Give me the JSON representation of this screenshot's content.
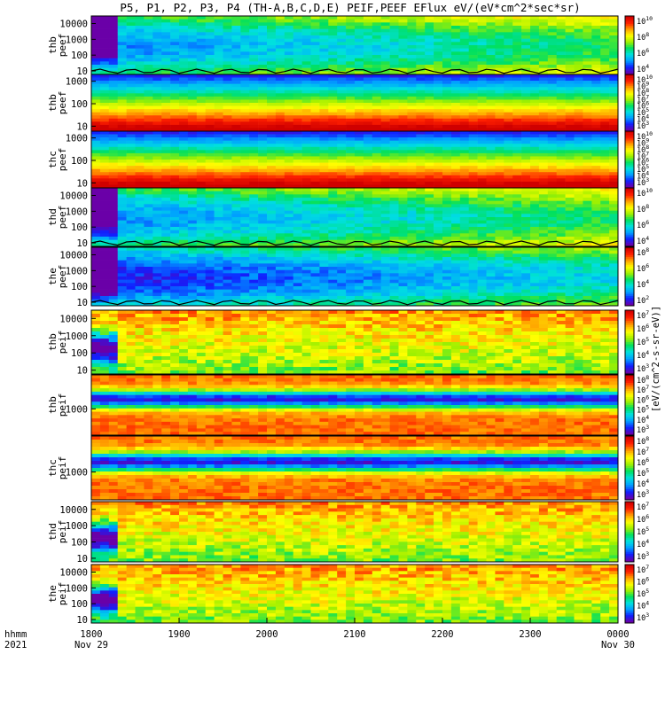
{
  "chart_data": {
    "type": "heatmap",
    "title": "P5, P1, P2, P3, P4 (TH-A,B,C,D,E) PEIF,PEEF EFlux eV/(eV*cm^2*sec*sr)",
    "colorbar_unit": "[eV/(cm^2-s-sr-eV)]",
    "colormap": [
      "#6a00a8",
      "#1020ff",
      "#00a0ff",
      "#00e0e0",
      "#00e060",
      "#a0f000",
      "#ffff00",
      "#ffa000",
      "#ff2000",
      "#d00000"
    ],
    "x_axis": {
      "row_labels": [
        "hhmm",
        "2021"
      ],
      "ticks": [
        {
          "time": "1800",
          "date": "Nov 29"
        },
        {
          "time": "1900",
          "date": ""
        },
        {
          "time": "2000",
          "date": ""
        },
        {
          "time": "2100",
          "date": ""
        },
        {
          "time": "2200",
          "date": ""
        },
        {
          "time": "2300",
          "date": ""
        },
        {
          "time": "0000",
          "date": "Nov 30"
        }
      ],
      "range_hours": [
        18,
        24
      ]
    },
    "panels": [
      {
        "probe": "thb",
        "product": "peef",
        "ylim": [
          6,
          30000
        ],
        "yticks": [
          "10",
          "100",
          "1000",
          "10000"
        ],
        "colorbar": {
          "ticks": [
            "10^10",
            "10^8",
            "10^6",
            "10^4"
          ]
        },
        "spacecraft_potential_line": true
      },
      {
        "probe": "thb",
        "product": "peef",
        "ylim": [
          6,
          2000
        ],
        "yticks": [
          "10",
          "100",
          "1000"
        ],
        "colorbar": {
          "ticks": [
            "10^10",
            "10^9",
            "10^8",
            "10^7",
            "10^6",
            "10^5",
            "10^4",
            "10^3"
          ]
        },
        "spacecraft_potential_line": false
      },
      {
        "probe": "thc",
        "product": "peef",
        "ylim": [
          6,
          2000
        ],
        "yticks": [
          "10",
          "100",
          "1000"
        ],
        "colorbar": {
          "ticks": [
            "10^10",
            "10^9",
            "10^8",
            "10^7",
            "10^6",
            "10^5",
            "10^4",
            "10^3"
          ]
        },
        "spacecraft_potential_line": false
      },
      {
        "probe": "thd",
        "product": "peef",
        "ylim": [
          6,
          30000
        ],
        "yticks": [
          "10",
          "100",
          "1000",
          "10000"
        ],
        "colorbar": {
          "ticks": [
            "10^10",
            "10^8",
            "10^6",
            "10^4"
          ]
        },
        "spacecraft_potential_line": true
      },
      {
        "probe": "the",
        "product": "peef",
        "ylim": [
          6,
          30000
        ],
        "yticks": [
          "10",
          "100",
          "1000",
          "10000"
        ],
        "colorbar": {
          "ticks": [
            "10^8",
            "10^6",
            "10^4",
            "10^2"
          ]
        },
        "spacecraft_potential_line": true
      },
      {
        "probe": "thb",
        "product": "peif",
        "ylim": [
          6,
          30000
        ],
        "yticks": [
          "10",
          "100",
          "1000",
          "10000"
        ],
        "colorbar": {
          "ticks": [
            "10^7",
            "10^6",
            "10^5",
            "10^4",
            "10^3"
          ]
        },
        "spacecraft_potential_line": false
      },
      {
        "probe": "thb",
        "product": "peif",
        "ylim": [
          200,
          8000
        ],
        "yticks": [
          "1000"
        ],
        "colorbar": {
          "ticks": [
            "10^8",
            "10^7",
            "10^6",
            "10^5",
            "10^4",
            "10^3"
          ]
        },
        "spacecraft_potential_line": false
      },
      {
        "probe": "thc",
        "product": "peif",
        "ylim": [
          200,
          8000
        ],
        "yticks": [
          "1000"
        ],
        "colorbar": {
          "ticks": [
            "10^8",
            "10^7",
            "10^6",
            "10^5",
            "10^4",
            "10^3"
          ]
        },
        "spacecraft_potential_line": false
      },
      {
        "probe": "thd",
        "product": "peif",
        "ylim": [
          6,
          30000
        ],
        "yticks": [
          "10",
          "100",
          "1000",
          "10000"
        ],
        "colorbar": {
          "ticks": [
            "10^7",
            "10^6",
            "10^5",
            "10^4",
            "10^3"
          ]
        },
        "spacecraft_potential_line": false
      },
      {
        "probe": "the",
        "product": "peif",
        "ylim": [
          6,
          30000
        ],
        "yticks": [
          "10",
          "100",
          "1000",
          "10000"
        ],
        "colorbar": {
          "ticks": [
            "10^7",
            "10^6",
            "10^5",
            "10^4",
            "10^3"
          ]
        },
        "spacecraft_potential_line": false
      }
    ]
  }
}
